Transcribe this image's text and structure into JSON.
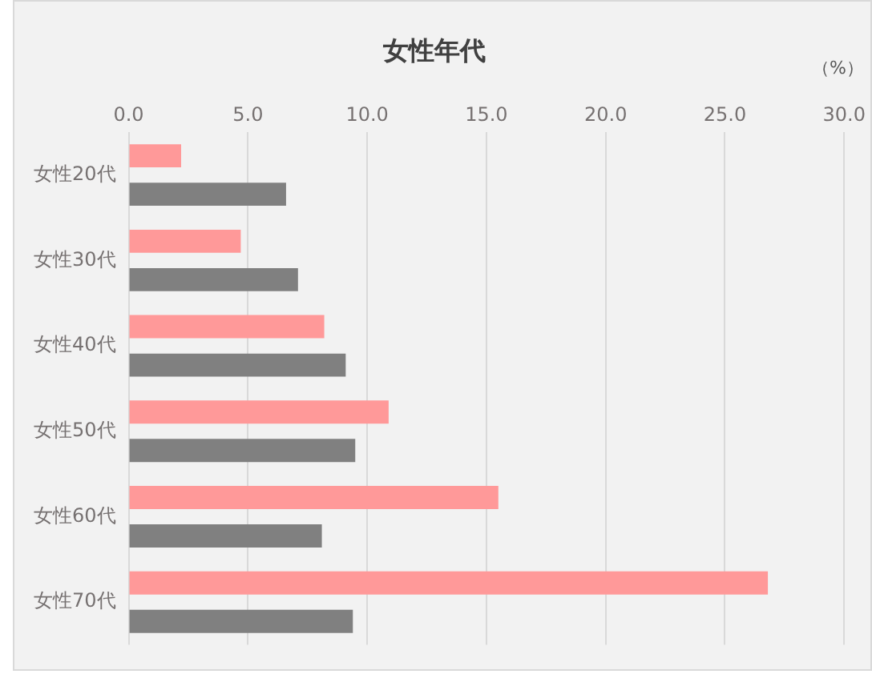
{
  "chart_data": {
    "type": "bar",
    "orientation": "horizontal",
    "title": "女性年代",
    "annotations": [
      "（%）"
    ],
    "categories": [
      "女性20代",
      "女性30代",
      "女性40代",
      "女性50代",
      "女性60代",
      "女性70代"
    ],
    "series": [
      {
        "color": "#ff9999",
        "values": [
          2.2,
          4.7,
          8.2,
          10.9,
          15.5,
          26.8
        ]
      },
      {
        "color": "#808080",
        "values": [
          6.6,
          7.1,
          9.1,
          9.5,
          8.1,
          9.4
        ]
      }
    ],
    "xlim": [
      0,
      30
    ],
    "xticks": [
      {
        "value": 0,
        "label": "0.0"
      },
      {
        "value": 5,
        "label": "5.0"
      },
      {
        "value": 10,
        "label": "10.0"
      },
      {
        "value": 15,
        "label": "15.0"
      },
      {
        "value": 20,
        "label": "20.0"
      },
      {
        "value": 25,
        "label": "25.0"
      },
      {
        "value": 30,
        "label": "30.0"
      }
    ],
    "grid": "x",
    "legend": false
  }
}
